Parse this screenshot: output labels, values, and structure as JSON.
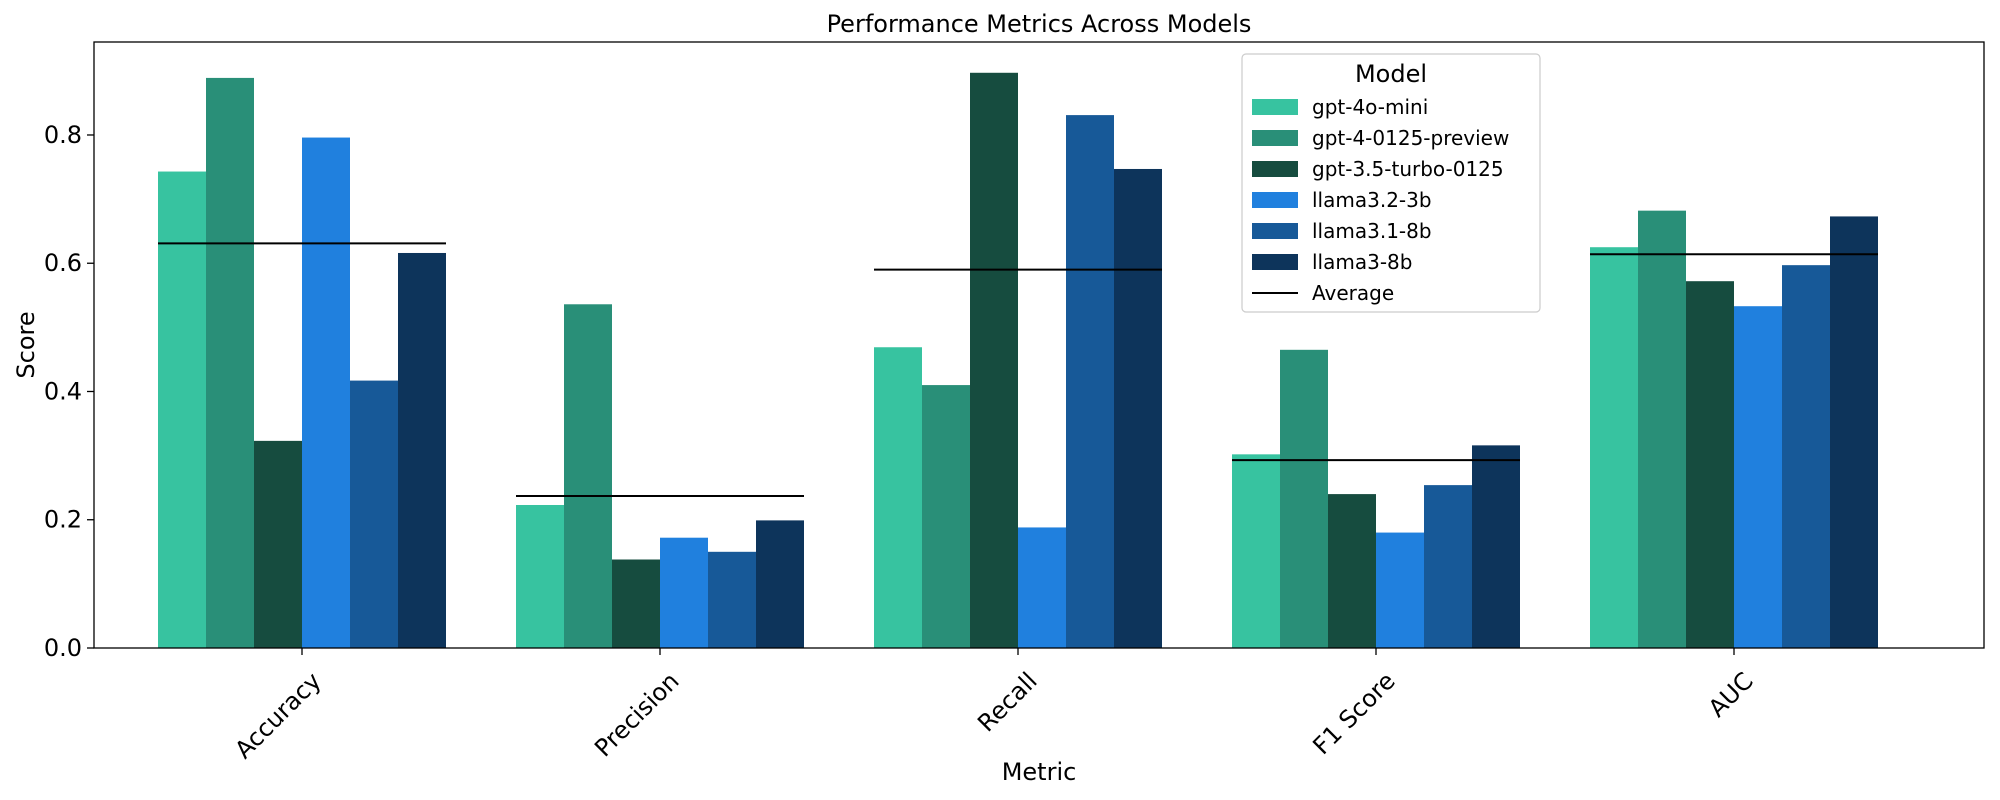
{
  "chart_data": {
    "type": "bar",
    "title": "Performance Metrics Across Models",
    "xlabel": "Metric",
    "ylabel": "Score",
    "ylim": [
      0,
      0.945
    ],
    "yticks": [
      "0.0",
      "0.2",
      "0.4",
      "0.6",
      "0.8"
    ],
    "grid": false,
    "legend_title": "Model",
    "legend_position": "top-center",
    "categories": [
      "Accuracy",
      "Precision",
      "Recall",
      "F1 Score",
      "AUC"
    ],
    "series": [
      {
        "name": "gpt-4o-mini",
        "color": "#37c3a0",
        "values": [
          0.743,
          0.223,
          0.469,
          0.302,
          0.625
        ]
      },
      {
        "name": "gpt-4-0125-preview",
        "color": "#298f78",
        "values": [
          0.889,
          0.536,
          0.41,
          0.465,
          0.682
        ]
      },
      {
        "name": "gpt-3.5-turbo-0125",
        "color": "#164c3f",
        "values": [
          0.323,
          0.138,
          0.897,
          0.24,
          0.572
        ]
      },
      {
        "name": "llama3.2-3b",
        "color": "#2080de",
        "values": [
          0.796,
          0.172,
          0.188,
          0.18,
          0.533
        ]
      },
      {
        "name": "llama3.1-8b",
        "color": "#175998",
        "values": [
          0.417,
          0.15,
          0.831,
          0.254,
          0.597
        ]
      },
      {
        "name": "llama3-8b",
        "color": "#0d345b",
        "values": [
          0.616,
          0.199,
          0.747,
          0.316,
          0.673
        ]
      }
    ],
    "average": {
      "name": "Average",
      "color": "#000000",
      "values": [
        0.631,
        0.237,
        0.59,
        0.293,
        0.614
      ]
    }
  }
}
